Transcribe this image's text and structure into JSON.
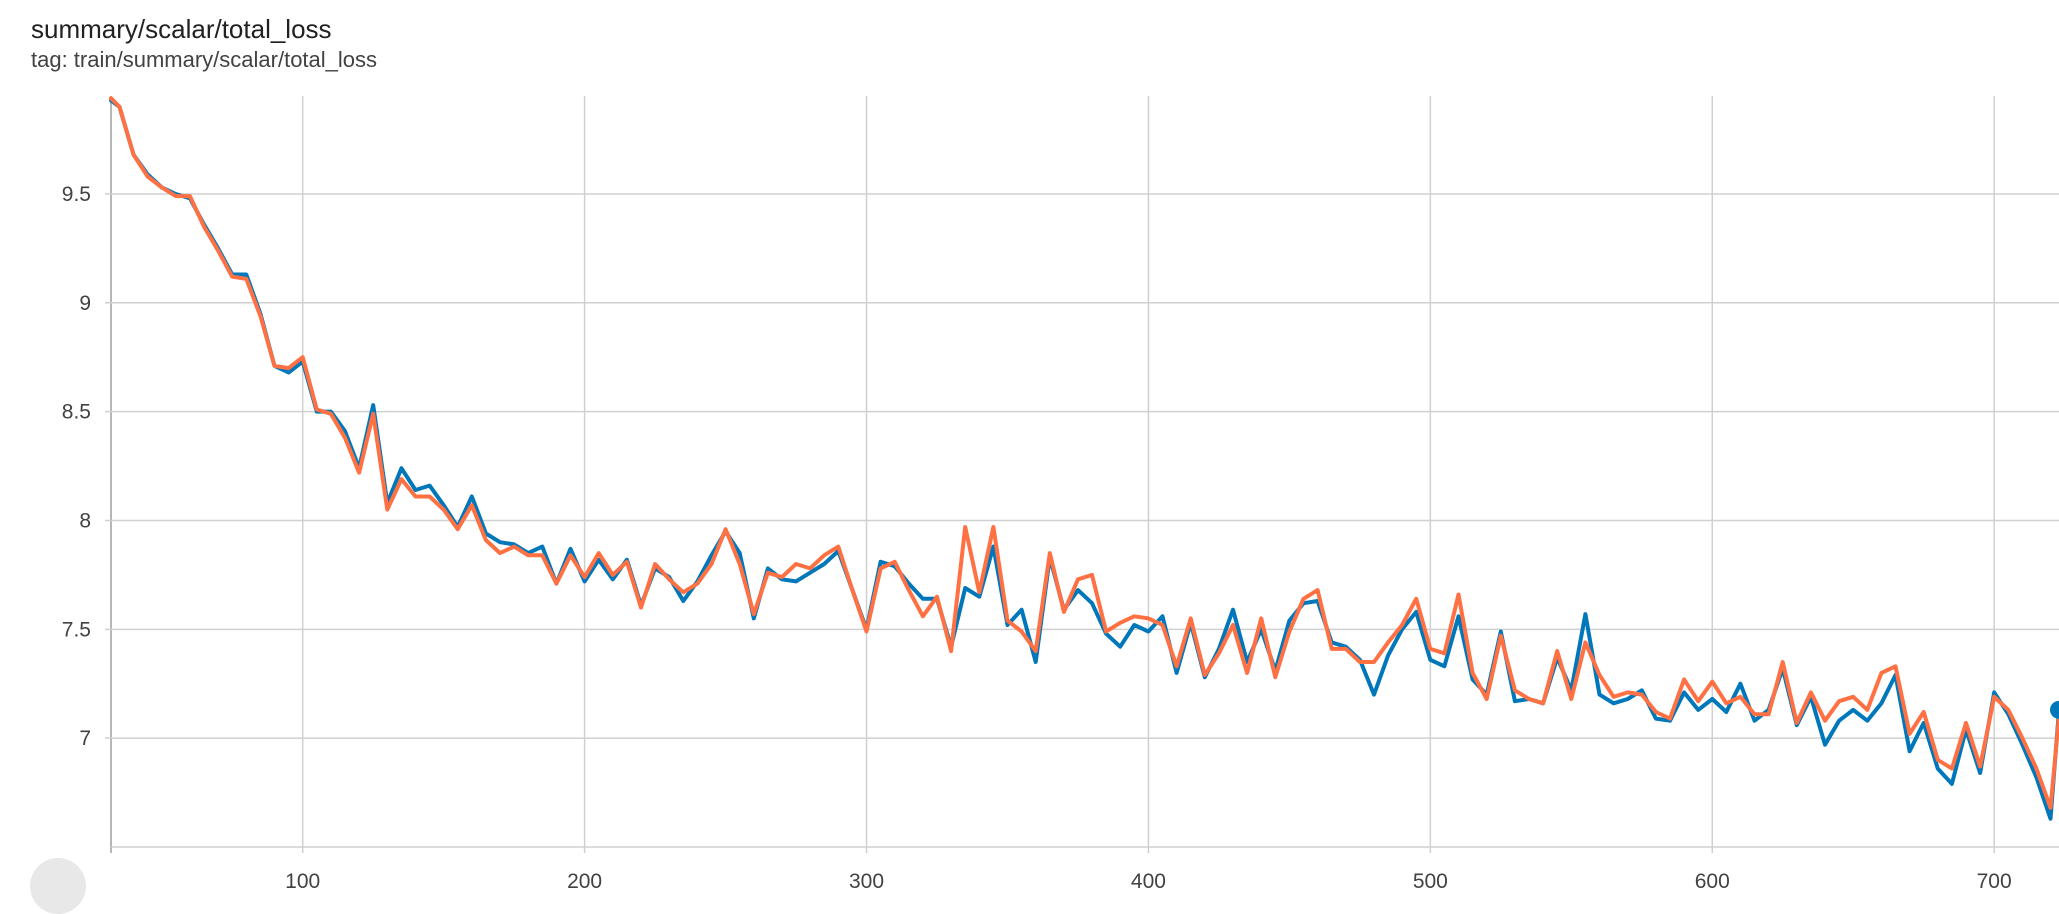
{
  "header": {
    "title": "summary/scalar/total_loss",
    "tag": "tag: train/summary/scalar/total_loss"
  },
  "colors": {
    "series_blue": "#0077bb",
    "series_orange": "#ff7043",
    "grid": "#d0d0d0"
  },
  "chart_data": {
    "type": "line",
    "title": "summary/scalar/total_loss",
    "xlabel": "",
    "ylabel": "",
    "xlim": [
      32,
      723
    ],
    "ylim": [
      6.5,
      9.95
    ],
    "x_ticks": [
      100,
      200,
      300,
      400,
      500,
      600,
      700
    ],
    "y_ticks": [
      7,
      7.5,
      8,
      8.5,
      9,
      9.5
    ],
    "x_tick_labels": [
      "100",
      "200",
      "300",
      "400",
      "500",
      "600",
      "700"
    ],
    "y_tick_labels": [
      "7",
      "7.5",
      "8",
      "8.5",
      "9",
      "9.5"
    ],
    "grid": true,
    "legend": "none",
    "series": [
      {
        "color": "#0077bb",
        "x": [
          32,
          35,
          40,
          45,
          50,
          55,
          60,
          65,
          70,
          75,
          80,
          85,
          90,
          95,
          100,
          105,
          110,
          115,
          120,
          125,
          130,
          135,
          140,
          145,
          150,
          155,
          160,
          165,
          170,
          175,
          180,
          185,
          190,
          195,
          200,
          205,
          210,
          215,
          220,
          225,
          230,
          235,
          240,
          245,
          250,
          255,
          260,
          265,
          270,
          275,
          280,
          285,
          290,
          295,
          300,
          305,
          310,
          315,
          320,
          325,
          330,
          335,
          340,
          345,
          350,
          355,
          360,
          365,
          370,
          375,
          380,
          385,
          390,
          395,
          400,
          405,
          410,
          415,
          420,
          425,
          430,
          435,
          440,
          445,
          450,
          455,
          460,
          465,
          470,
          475,
          480,
          485,
          490,
          495,
          500,
          505,
          510,
          515,
          520,
          525,
          530,
          535,
          540,
          545,
          550,
          555,
          560,
          565,
          570,
          575,
          580,
          585,
          590,
          595,
          600,
          605,
          610,
          615,
          620,
          625,
          630,
          635,
          640,
          645,
          650,
          655,
          660,
          665,
          670,
          675,
          680,
          685,
          690,
          695,
          700,
          705,
          710,
          715,
          720,
          723
        ],
        "y": [
          9.93,
          9.9,
          9.68,
          9.59,
          9.53,
          9.5,
          9.48,
          9.36,
          9.25,
          9.13,
          9.13,
          8.95,
          8.71,
          8.68,
          8.73,
          8.5,
          8.5,
          8.41,
          8.24,
          8.53,
          8.08,
          8.24,
          8.14,
          8.16,
          8.07,
          7.97,
          8.11,
          7.94,
          7.9,
          7.89,
          7.85,
          7.88,
          7.71,
          7.87,
          7.72,
          7.82,
          7.73,
          7.82,
          7.61,
          7.78,
          7.74,
          7.63,
          7.72,
          7.84,
          7.95,
          7.85,
          7.55,
          7.78,
          7.73,
          7.72,
          7.76,
          7.8,
          7.86,
          7.68,
          7.5,
          7.81,
          7.79,
          7.71,
          7.64,
          7.64,
          7.42,
          7.69,
          7.65,
          7.88,
          7.52,
          7.59,
          7.35,
          7.83,
          7.59,
          7.68,
          7.62,
          7.48,
          7.42,
          7.52,
          7.49,
          7.56,
          7.3,
          7.53,
          7.28,
          7.41,
          7.59,
          7.35,
          7.5,
          7.31,
          7.54,
          7.62,
          7.63,
          7.44,
          7.42,
          7.36,
          7.2,
          7.38,
          7.5,
          7.58,
          7.36,
          7.33,
          7.56,
          7.27,
          7.2,
          7.49,
          7.17,
          7.18,
          7.16,
          7.37,
          7.22,
          7.57,
          7.2,
          7.16,
          7.18,
          7.22,
          7.09,
          7.08,
          7.21,
          7.13,
          7.18,
          7.12,
          7.25,
          7.08,
          7.13,
          7.32,
          7.06,
          7.19,
          6.97,
          7.08,
          7.13,
          7.08,
          7.16,
          7.29,
          6.94,
          7.07,
          6.86,
          6.79,
          7.04,
          6.84,
          7.21,
          7.11,
          6.97,
          6.82,
          6.63,
          7.13
        ]
      },
      {
        "color": "#ff7043",
        "x": [
          32,
          35,
          40,
          45,
          50,
          55,
          60,
          65,
          70,
          75,
          80,
          85,
          90,
          95,
          100,
          105,
          110,
          115,
          120,
          125,
          130,
          135,
          140,
          145,
          150,
          155,
          160,
          165,
          170,
          175,
          180,
          185,
          190,
          195,
          200,
          205,
          210,
          215,
          220,
          225,
          230,
          235,
          240,
          245,
          250,
          255,
          260,
          265,
          270,
          275,
          280,
          285,
          290,
          295,
          300,
          305,
          310,
          315,
          320,
          325,
          330,
          335,
          340,
          345,
          350,
          355,
          360,
          365,
          370,
          375,
          380,
          385,
          390,
          395,
          400,
          405,
          410,
          415,
          420,
          425,
          430,
          435,
          440,
          445,
          450,
          455,
          460,
          465,
          470,
          475,
          480,
          485,
          490,
          495,
          500,
          505,
          510,
          515,
          520,
          525,
          530,
          535,
          540,
          545,
          550,
          555,
          560,
          565,
          570,
          575,
          580,
          585,
          590,
          595,
          600,
          605,
          610,
          615,
          620,
          625,
          630,
          635,
          640,
          645,
          650,
          655,
          660,
          665,
          670,
          675,
          680,
          685,
          690,
          695,
          700,
          705,
          710,
          715,
          720,
          723
        ],
        "y": [
          9.94,
          9.9,
          9.68,
          9.58,
          9.53,
          9.49,
          9.49,
          9.35,
          9.24,
          9.12,
          9.11,
          8.94,
          8.71,
          8.7,
          8.75,
          8.51,
          8.49,
          8.38,
          8.22,
          8.49,
          8.05,
          8.19,
          8.11,
          8.11,
          8.05,
          7.96,
          8.07,
          7.91,
          7.85,
          7.88,
          7.84,
          7.84,
          7.71,
          7.84,
          7.74,
          7.85,
          7.75,
          7.81,
          7.6,
          7.8,
          7.73,
          7.67,
          7.71,
          7.8,
          7.96,
          7.8,
          7.57,
          7.76,
          7.74,
          7.8,
          7.78,
          7.84,
          7.88,
          7.68,
          7.49,
          7.78,
          7.81,
          7.68,
          7.56,
          7.65,
          7.4,
          7.97,
          7.67,
          7.97,
          7.54,
          7.49,
          7.4,
          7.85,
          7.58,
          7.73,
          7.75,
          7.49,
          7.53,
          7.56,
          7.55,
          7.52,
          7.33,
          7.55,
          7.29,
          7.39,
          7.52,
          7.3,
          7.55,
          7.28,
          7.49,
          7.64,
          7.68,
          7.41,
          7.41,
          7.35,
          7.35,
          7.44,
          7.52,
          7.64,
          7.41,
          7.39,
          7.66,
          7.3,
          7.18,
          7.47,
          7.22,
          7.18,
          7.16,
          7.4,
          7.18,
          7.44,
          7.29,
          7.19,
          7.21,
          7.2,
          7.12,
          7.09,
          7.27,
          7.17,
          7.26,
          7.16,
          7.19,
          7.11,
          7.11,
          7.35,
          7.07,
          7.21,
          7.08,
          7.17,
          7.19,
          7.13,
          7.3,
          7.33,
          7.02,
          7.12,
          6.9,
          6.86,
          7.07,
          6.87,
          7.19,
          7.13,
          7.0,
          6.86,
          6.68,
          7.1
        ]
      }
    ]
  }
}
